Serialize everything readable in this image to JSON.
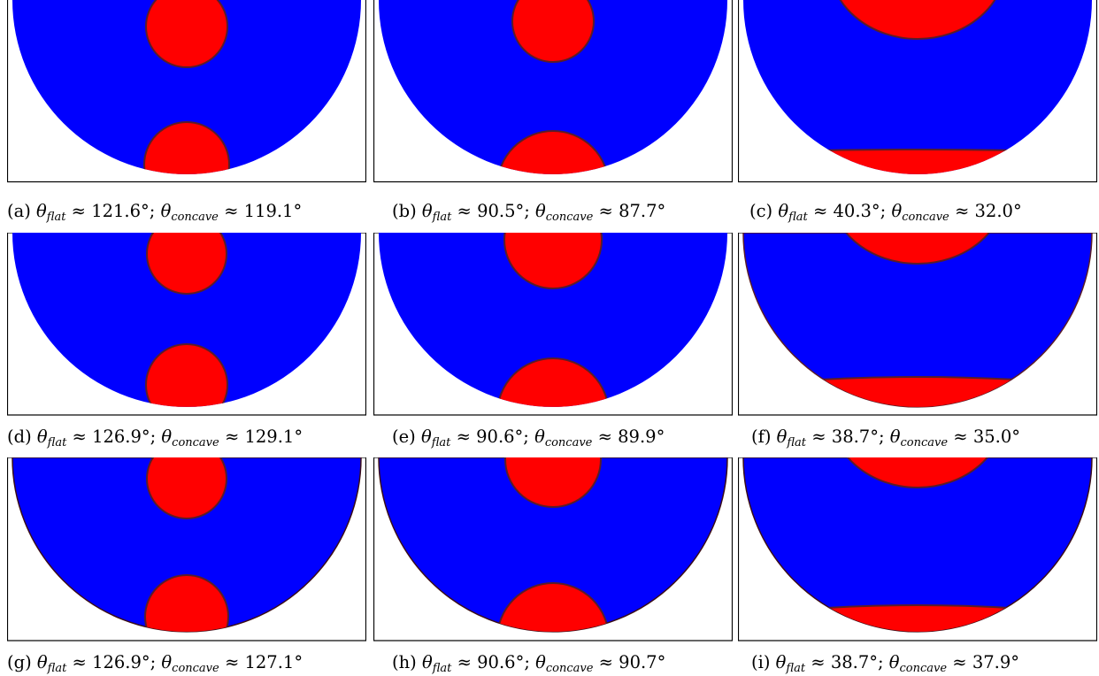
{
  "figure": {
    "colors": {
      "substrate": "#0000ff",
      "droplet": "#ff0000",
      "outline": "#5a1d28",
      "frame": "#000000"
    },
    "panels": [
      {
        "label": "(a)",
        "theta_flat": "121.6",
        "theta_concave": "119.1"
      },
      {
        "label": "(b)",
        "theta_flat": "90.5",
        "theta_concave": "87.7"
      },
      {
        "label": "(c)",
        "theta_flat": "40.3",
        "theta_concave": "32.0"
      },
      {
        "label": "(d)",
        "theta_flat": "126.9",
        "theta_concave": "129.1"
      },
      {
        "label": "(e)",
        "theta_flat": "90.6",
        "theta_concave": "89.9"
      },
      {
        "label": "(f)",
        "theta_flat": "38.7",
        "theta_concave": "35.0"
      },
      {
        "label": "(g)",
        "theta_flat": "126.9",
        "theta_concave": "127.1"
      },
      {
        "label": "(h)",
        "theta_flat": "90.6",
        "theta_concave": "90.7"
      },
      {
        "label": "(i)",
        "theta_flat": "38.7",
        "theta_concave": "37.9"
      }
    ],
    "symbols": {
      "theta": "θ",
      "approx": "≈",
      "degree": "°",
      "sep": ";",
      "flat": "flat",
      "concave": "concave"
    }
  }
}
